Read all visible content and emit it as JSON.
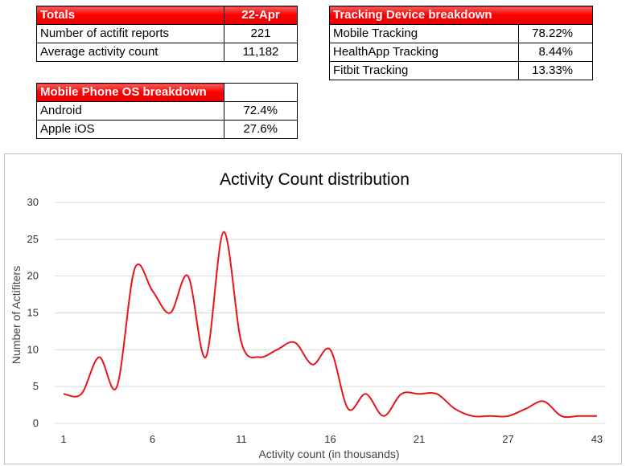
{
  "totals": {
    "header_label": "Totals",
    "header_date": "22-Apr",
    "rows": [
      {
        "label": "Number of actifit reports",
        "value": "221"
      },
      {
        "label": "Average activity count",
        "value": "11,182"
      }
    ]
  },
  "tracking": {
    "header": "Tracking Device breakdown",
    "rows": [
      {
        "label": "Mobile Tracking",
        "value": "78.22%"
      },
      {
        "label": "HealthApp Tracking",
        "value": "8.44%"
      },
      {
        "label": "Fitbit Tracking",
        "value": "13.33%"
      }
    ]
  },
  "os": {
    "header": "Mobile Phone OS breakdown",
    "rows": [
      {
        "label": "Android",
        "value": "72.4%"
      },
      {
        "label": "Apple iOS",
        "value": "27.6%"
      }
    ]
  },
  "colors": {
    "header_red": "#ff0000",
    "series_line": "#e8141c",
    "gridline": "#d9d9d9"
  },
  "chart_data": {
    "type": "line",
    "title": "Activity Count distribution",
    "xlabel": "Activity count (in thousands)",
    "ylabel": "Number of Actifiters",
    "ylim": [
      0,
      30
    ],
    "yticks": [
      0,
      5,
      10,
      15,
      20,
      25,
      30
    ],
    "xticks": [
      "1",
      "6",
      "11",
      "16",
      "21",
      "27",
      "43"
    ],
    "grid": true,
    "legend": "none",
    "smooth": true,
    "x": [
      1,
      2,
      3,
      4,
      5,
      6,
      7,
      8,
      9,
      10,
      11,
      12,
      13,
      14,
      15,
      16,
      17,
      18,
      19,
      20,
      21,
      22,
      23,
      24,
      25,
      27,
      28,
      29,
      30,
      31,
      43
    ],
    "series": [
      {
        "values": [
          4,
          4,
          9,
          5,
          21,
          18,
          15,
          20,
          9,
          26,
          11,
          9,
          10,
          11,
          8,
          10,
          2,
          4,
          1,
          4,
          4,
          4,
          2,
          1,
          1,
          1,
          2,
          3,
          1,
          1,
          1
        ]
      }
    ]
  }
}
